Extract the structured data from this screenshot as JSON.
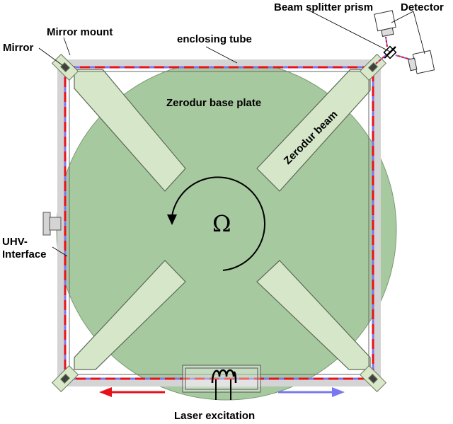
{
  "labels": {
    "beam_splitter": "Beam splitter prism",
    "detector": "Detector",
    "mirror_mount": "Mirror mount",
    "mirror": "Mirror",
    "enclosing_tube": "enclosing tube",
    "base_plate": "Zerodur base plate",
    "zerodur_beam": "Zerodur beam",
    "omega": "Ω",
    "uhv_line1": "UHV-",
    "uhv_line2": "Interface",
    "laser": "Laser excitation"
  },
  "colors": {
    "plate": "#a7c9a0",
    "beam_fill": "#d6e6c9",
    "tube": "#d4d4d4",
    "beam_red": "#e8111b",
    "beam_blue": "#7a78f0",
    "mount": "#d9e8c8",
    "mirror": "#404040"
  }
}
